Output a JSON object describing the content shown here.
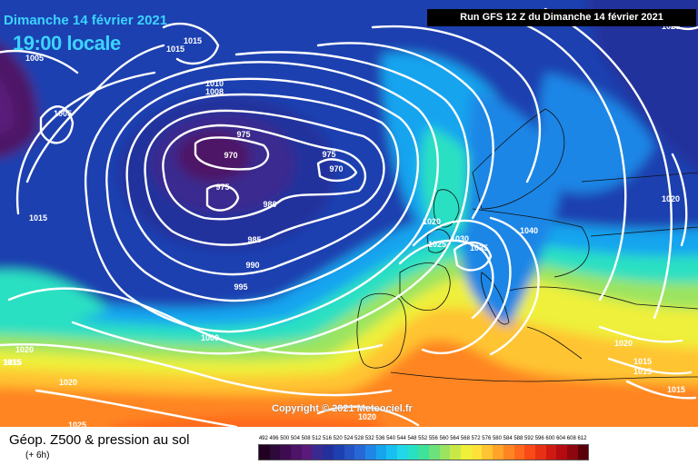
{
  "header": {
    "date": "Dimanche 14 février 2021",
    "time_label": "19:00 locale",
    "run_info": "Run GFS 12 Z du Dimanche 14 février 2021",
    "copyright": "Copyright © 2021 Meteociel.fr"
  },
  "legend": {
    "title": "Géop. Z500 & pression au sol",
    "subtitle": "(+ 6h)",
    "scale_values": [
      "492",
      "496",
      "500",
      "504",
      "508",
      "512",
      "516",
      "520",
      "524",
      "528",
      "532",
      "536",
      "540",
      "544",
      "548",
      "552",
      "556",
      "560",
      "564",
      "568",
      "572",
      "576",
      "580",
      "584",
      "588",
      "592",
      "596",
      "600",
      "604",
      "608",
      "612"
    ],
    "scale_colors": [
      "#220022",
      "#2d0a3a",
      "#3d0b4f",
      "#4d1366",
      "#5a1a7a",
      "#3a2a8f",
      "#23309c",
      "#1d3fb0",
      "#2553c4",
      "#2867d8",
      "#1f86e6",
      "#17a4ef",
      "#18c0f2",
      "#22d8e8",
      "#29e0c2",
      "#3ee29a",
      "#6ee27a",
      "#9be460",
      "#c9e847",
      "#eef03a",
      "#ffe13a",
      "#ffc431",
      "#ffa329",
      "#ff8522",
      "#ff681c",
      "#f94a18",
      "#e83014",
      "#cf1a12",
      "#b40c10",
      "#8e0610",
      "#5a0008"
    ]
  },
  "pressure_labels": [
    {
      "text": "1015"
    },
    {
      "text": "1015"
    },
    {
      "text": "1005"
    },
    {
      "text": "1005"
    },
    {
      "text": "1010"
    },
    {
      "text": "1008"
    },
    {
      "text": "975"
    },
    {
      "text": "970"
    },
    {
      "text": "975"
    },
    {
      "text": "970"
    },
    {
      "text": "975"
    },
    {
      "text": "980"
    },
    {
      "text": "985"
    },
    {
      "text": "990"
    },
    {
      "text": "995"
    },
    {
      "text": "1000"
    },
    {
      "text": "1015"
    },
    {
      "text": "1015"
    },
    {
      "text": "1020"
    },
    {
      "text": "1015"
    },
    {
      "text": "1020"
    },
    {
      "text": "1025"
    },
    {
      "text": "1020"
    },
    {
      "text": "1025"
    },
    {
      "text": "1030"
    },
    {
      "text": "1035"
    },
    {
      "text": "1040"
    },
    {
      "text": "1020"
    },
    {
      "text": "1020"
    },
    {
      "text": "1015"
    },
    {
      "text": "1015"
    },
    {
      "text": "1015"
    },
    {
      "text": "1020"
    },
    {
      "text": "1020"
    }
  ]
}
